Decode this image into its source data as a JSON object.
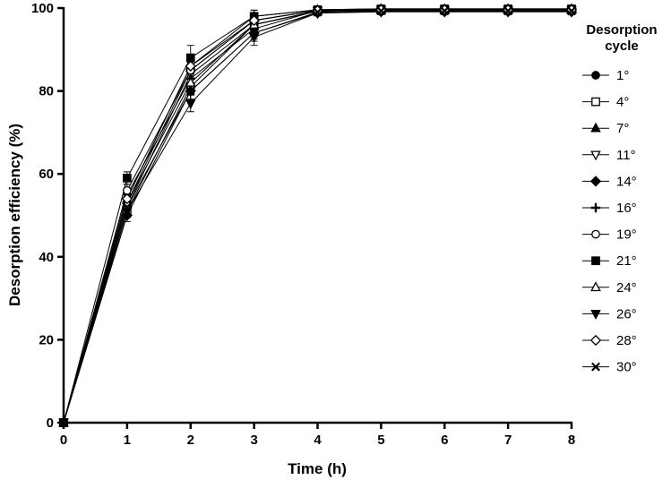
{
  "chart_data": {
    "type": "line",
    "title": "",
    "xlabel": "Time (h)",
    "ylabel": "Desorption efficiency (%)",
    "xlim": [
      0,
      8
    ],
    "ylim": [
      0,
      100
    ],
    "x_ticks": [
      "0",
      "1",
      "2",
      "3",
      "4",
      "5",
      "6",
      "7",
      "8"
    ],
    "y_ticks": [
      "0",
      "20",
      "40",
      "60",
      "80",
      "100"
    ],
    "grid": false,
    "error_bars": true,
    "legend_position": "right",
    "legend_title_line1": "Desorption",
    "legend_title_line2": "cycle",
    "x": [
      0,
      1,
      2,
      3,
      4,
      5,
      6,
      7,
      8
    ],
    "series": [
      {
        "name": "1°",
        "marker": "circle-filled",
        "values": [
          0,
          53,
          85,
          97,
          99.5,
          99.7,
          99.7,
          99.7,
          99.7
        ],
        "err": [
          0,
          1.5,
          2,
          1.5,
          0.3,
          0.2,
          0.2,
          0.2,
          0.2
        ]
      },
      {
        "name": "4°",
        "marker": "square-open",
        "values": [
          0,
          51,
          81,
          96,
          99.2,
          99.5,
          99.5,
          99.5,
          99.5
        ],
        "err": [
          0,
          1.5,
          2,
          1.5,
          0.3,
          0.2,
          0.2,
          0.2,
          0.2
        ]
      },
      {
        "name": "7°",
        "marker": "triangle-filled",
        "values": [
          0,
          54,
          86,
          98,
          99.6,
          99.8,
          99.8,
          99.8,
          99.8
        ],
        "err": [
          0,
          1.5,
          2,
          1.5,
          0.3,
          0.2,
          0.2,
          0.2,
          0.2
        ]
      },
      {
        "name": "11°",
        "marker": "triangle-down-open",
        "values": [
          0,
          52,
          84,
          96,
          99.3,
          99.5,
          99.5,
          99.5,
          99.5
        ],
        "err": [
          0,
          1.5,
          2,
          1.5,
          0.3,
          0.2,
          0.2,
          0.2,
          0.2
        ]
      },
      {
        "name": "14°",
        "marker": "diamond-filled",
        "values": [
          0,
          50,
          80,
          94,
          98.8,
          99.1,
          99.1,
          99.1,
          99.1
        ],
        "err": [
          0,
          1.5,
          2,
          1.5,
          0.3,
          0.2,
          0.2,
          0.2,
          0.2
        ]
      },
      {
        "name": "16°",
        "marker": "plus",
        "values": [
          0,
          55,
          83,
          95,
          99.4,
          99.6,
          99.6,
          99.6,
          99.6
        ],
        "err": [
          0,
          1.5,
          2,
          1.5,
          0.3,
          0.2,
          0.2,
          0.2,
          0.2
        ]
      },
      {
        "name": "19°",
        "marker": "circle-open",
        "values": [
          0,
          56,
          85,
          97,
          99.5,
          99.7,
          99.7,
          99.7,
          99.7
        ],
        "err": [
          0,
          1.5,
          2,
          1.5,
          0.3,
          0.2,
          0.2,
          0.2,
          0.2
        ]
      },
      {
        "name": "21°",
        "marker": "square-filled",
        "values": [
          0,
          59,
          88,
          98,
          99.6,
          99.8,
          99.8,
          99.8,
          99.8
        ],
        "err": [
          0,
          1.5,
          3,
          1.5,
          0.3,
          0.2,
          0.2,
          0.2,
          0.2
        ]
      },
      {
        "name": "24°",
        "marker": "triangle-open",
        "values": [
          0,
          53,
          82,
          96,
          99.3,
          99.5,
          99.5,
          99.5,
          99.5
        ],
        "err": [
          0,
          1.5,
          2,
          1.5,
          0.3,
          0.2,
          0.2,
          0.2,
          0.2
        ]
      },
      {
        "name": "26°",
        "marker": "triangle-down-filled",
        "values": [
          0,
          51,
          77,
          93,
          98.8,
          99.1,
          99.1,
          99.1,
          99.1
        ],
        "err": [
          0,
          1.5,
          2,
          2,
          0.3,
          0.2,
          0.2,
          0.2,
          0.2
        ]
      },
      {
        "name": "28°",
        "marker": "diamond-open",
        "values": [
          0,
          54,
          86,
          97,
          99.4,
          99.6,
          99.6,
          99.6,
          99.6
        ],
        "err": [
          0,
          1.5,
          2,
          1.5,
          0.3,
          0.2,
          0.2,
          0.2,
          0.2
        ]
      },
      {
        "name": "30°",
        "marker": "x",
        "values": [
          0,
          52,
          80,
          94,
          99.0,
          99.3,
          99.3,
          99.3,
          99.3
        ],
        "err": [
          0,
          1.5,
          2,
          2,
          0.3,
          0.2,
          0.2,
          0.2,
          0.2
        ]
      }
    ],
    "colors": {
      "line": "#000000",
      "background": "#ffffff"
    }
  }
}
